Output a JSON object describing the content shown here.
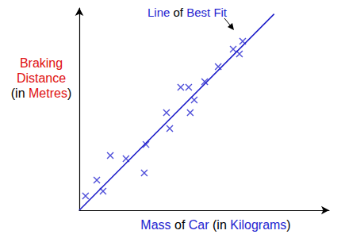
{
  "chart_data": {
    "type": "scatter",
    "annotation": "Line of Best Fit",
    "x_label": "Mass of Car (in Kilograms)",
    "y_label": "Braking\nDistance\n(in Metres)",
    "x": [
      2.5,
      7.0,
      9.5,
      12.4,
      18.7,
      26.0,
      26.7,
      34.9,
      36.2,
      40.6,
      43.8,
      44.4,
      46.0,
      50.2,
      55.6,
      61.6,
      64.1,
      65.4
    ],
    "values": [
      7.1,
      14.9,
      9.4,
      27.1,
      25.5,
      18.4,
      32.5,
      48.2,
      40.4,
      60.8,
      60.8,
      48.2,
      54.5,
      63.5,
      71.0,
      79.6,
      77.3,
      83.5
    ],
    "color": "#2323d0",
    "marker": "x",
    "fit_line": {
      "x": [
        0,
        78
      ],
      "y": [
        0,
        97
      ],
      "color": "#1a1ac8"
    },
    "xlim": [
      0,
      100
    ],
    "ylim": [
      0,
      100
    ],
    "tick_labels": false,
    "grid": false
  }
}
